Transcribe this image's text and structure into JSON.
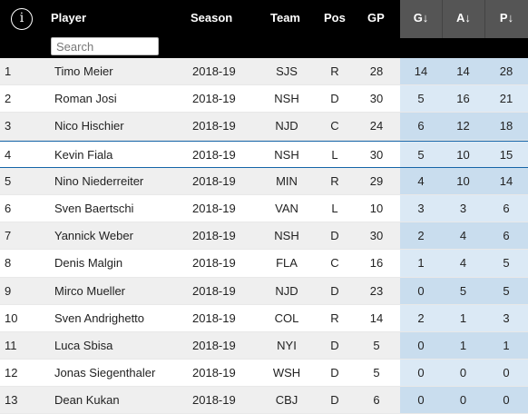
{
  "header": {
    "info_glyph": "i",
    "player": "Player",
    "season": "Season",
    "team": "Team",
    "pos": "Pos",
    "gp": "GP",
    "g": "G↓",
    "a": "A↓",
    "p": "P↓"
  },
  "search": {
    "placeholder": "Search",
    "value": ""
  },
  "colors": {
    "header_bg": "#000000",
    "sorted_header_bg": "#555555",
    "sorted_cell_bg": "#dbe9f5",
    "highlight_border": "#1565a8"
  },
  "rows": [
    {
      "rank": "1",
      "player": "Timo Meier",
      "season": "2018-19",
      "team": "SJS",
      "pos": "R",
      "gp": "28",
      "g": "14",
      "a": "14",
      "p": "28"
    },
    {
      "rank": "2",
      "player": "Roman Josi",
      "season": "2018-19",
      "team": "NSH",
      "pos": "D",
      "gp": "30",
      "g": "5",
      "a": "16",
      "p": "21"
    },
    {
      "rank": "3",
      "player": "Nico Hischier",
      "season": "2018-19",
      "team": "NJD",
      "pos": "C",
      "gp": "24",
      "g": "6",
      "a": "12",
      "p": "18"
    },
    {
      "rank": "4",
      "player": "Kevin Fiala",
      "season": "2018-19",
      "team": "NSH",
      "pos": "L",
      "gp": "30",
      "g": "5",
      "a": "10",
      "p": "15"
    },
    {
      "rank": "5",
      "player": "Nino Niederreiter",
      "season": "2018-19",
      "team": "MIN",
      "pos": "R",
      "gp": "29",
      "g": "4",
      "a": "10",
      "p": "14"
    },
    {
      "rank": "6",
      "player": "Sven Baertschi",
      "season": "2018-19",
      "team": "VAN",
      "pos": "L",
      "gp": "10",
      "g": "3",
      "a": "3",
      "p": "6"
    },
    {
      "rank": "7",
      "player": "Yannick Weber",
      "season": "2018-19",
      "team": "NSH",
      "pos": "D",
      "gp": "30",
      "g": "2",
      "a": "4",
      "p": "6"
    },
    {
      "rank": "8",
      "player": "Denis Malgin",
      "season": "2018-19",
      "team": "FLA",
      "pos": "C",
      "gp": "16",
      "g": "1",
      "a": "4",
      "p": "5"
    },
    {
      "rank": "9",
      "player": "Mirco Mueller",
      "season": "2018-19",
      "team": "NJD",
      "pos": "D",
      "gp": "23",
      "g": "0",
      "a": "5",
      "p": "5"
    },
    {
      "rank": "10",
      "player": "Sven Andrighetto",
      "season": "2018-19",
      "team": "COL",
      "pos": "R",
      "gp": "14",
      "g": "2",
      "a": "1",
      "p": "3"
    },
    {
      "rank": "11",
      "player": "Luca Sbisa",
      "season": "2018-19",
      "team": "NYI",
      "pos": "D",
      "gp": "5",
      "g": "0",
      "a": "1",
      "p": "1"
    },
    {
      "rank": "12",
      "player": "Jonas Siegenthaler",
      "season": "2018-19",
      "team": "WSH",
      "pos": "D",
      "gp": "5",
      "g": "0",
      "a": "0",
      "p": "0"
    },
    {
      "rank": "13",
      "player": "Dean Kukan",
      "season": "2018-19",
      "team": "CBJ",
      "pos": "D",
      "gp": "6",
      "g": "0",
      "a": "0",
      "p": "0"
    }
  ]
}
